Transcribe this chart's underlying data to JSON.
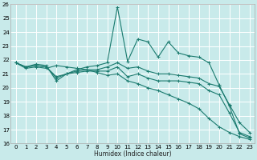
{
  "title": "",
  "xlabel": "Humidex (Indice chaleur)",
  "bg_color": "#c8eaea",
  "grid_color": "#ffffff",
  "line_color": "#1a7a6e",
  "xlim": [
    -0.5,
    23.5
  ],
  "ylim": [
    16,
    26
  ],
  "xticks": [
    0,
    1,
    2,
    3,
    4,
    5,
    6,
    7,
    8,
    9,
    10,
    11,
    12,
    13,
    14,
    15,
    16,
    17,
    18,
    19,
    20,
    21,
    22,
    23
  ],
  "yticks": [
    16,
    17,
    18,
    19,
    20,
    21,
    22,
    23,
    24,
    25,
    26
  ],
  "series": [
    {
      "x": [
        0,
        1,
        2,
        3,
        4,
        5,
        6,
        7,
        8,
        9,
        10,
        11,
        12,
        13,
        14,
        15,
        16,
        17,
        18,
        19,
        20,
        21,
        22,
        23
      ],
      "y": [
        21.8,
        21.5,
        21.7,
        21.6,
        20.5,
        21.0,
        21.3,
        21.5,
        21.6,
        21.8,
        25.8,
        21.9,
        23.5,
        23.3,
        22.2,
        23.3,
        22.5,
        22.3,
        22.2,
        21.8,
        20.2,
        18.7,
        16.7,
        16.4
      ]
    },
    {
      "x": [
        0,
        1,
        2,
        3,
        4,
        5,
        6,
        7,
        8,
        9,
        10,
        11,
        12,
        13,
        14,
        15,
        16,
        17,
        18,
        19,
        20,
        21,
        22,
        23
      ],
      "y": [
        21.8,
        21.5,
        21.6,
        21.5,
        20.8,
        21.0,
        21.2,
        21.3,
        21.3,
        21.5,
        21.8,
        21.4,
        21.5,
        21.2,
        21.0,
        21.0,
        20.9,
        20.8,
        20.7,
        20.3,
        20.1,
        18.8,
        17.5,
        16.8
      ]
    },
    {
      "x": [
        0,
        1,
        2,
        3,
        4,
        5,
        6,
        7,
        8,
        9,
        10,
        11,
        12,
        13,
        14,
        15,
        16,
        17,
        18,
        19,
        20,
        21,
        22,
        23
      ],
      "y": [
        21.8,
        21.5,
        21.6,
        21.5,
        20.7,
        21.0,
        21.1,
        21.2,
        21.2,
        21.2,
        21.5,
        20.8,
        21.0,
        20.7,
        20.5,
        20.5,
        20.5,
        20.4,
        20.3,
        19.8,
        19.5,
        18.2,
        16.8,
        16.5
      ]
    },
    {
      "x": [
        0,
        1,
        2,
        3,
        4,
        5,
        6,
        7,
        8,
        9,
        10,
        11,
        12,
        13,
        14,
        15,
        16,
        17,
        18,
        19,
        20,
        21,
        22,
        23
      ],
      "y": [
        21.8,
        21.4,
        21.5,
        21.4,
        21.6,
        21.5,
        21.4,
        21.3,
        21.1,
        20.9,
        21.0,
        20.5,
        20.3,
        20.0,
        19.8,
        19.5,
        19.2,
        18.9,
        18.5,
        17.8,
        17.2,
        16.8,
        16.5,
        16.3
      ]
    }
  ]
}
